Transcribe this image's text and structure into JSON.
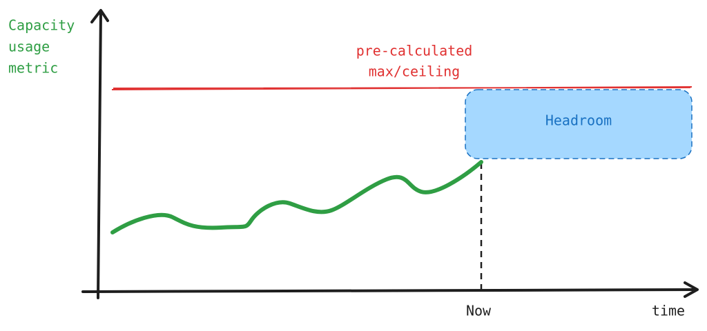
{
  "y_axis_label": [
    "Capacity",
    "usage",
    "metric"
  ],
  "ceiling_label": [
    "pre-calculated",
    "max/ceiling"
  ],
  "headroom_label": "Headroom",
  "now_label": "Now",
  "x_axis_label": "time"
}
